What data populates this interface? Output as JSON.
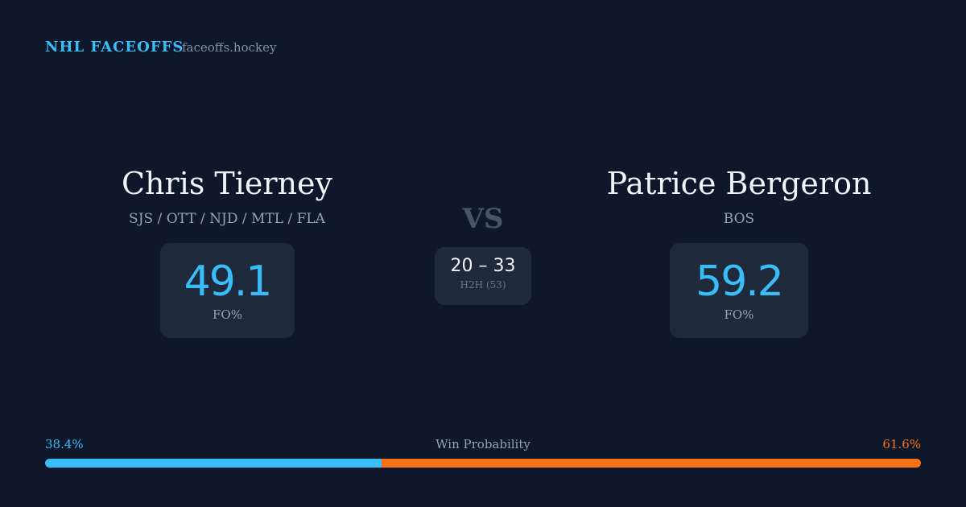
{
  "header": {
    "title": "NHL FACEOFFS",
    "site": "faceoffs.hockey"
  },
  "players": [
    {
      "name": "Chris Tierney",
      "teams": "SJS / OTT / NJD / MTL / FLA",
      "stat": 49.1,
      "stat_label": "FO%"
    },
    {
      "name": "Patrice Bergeron",
      "teams": "BOS",
      "stat": 59.2,
      "stat_label": "FO%"
    }
  ],
  "versus": {
    "label": "VS",
    "record": "20 – 33",
    "record_label": "H2H (53)"
  },
  "win_probability": {
    "title": "Win Probability",
    "left": {
      "value": 38.4,
      "label": "38.4%",
      "color": "#38bdf8"
    },
    "right": {
      "value": 61.6,
      "label": "61.6%",
      "color": "#f97316"
    }
  }
}
